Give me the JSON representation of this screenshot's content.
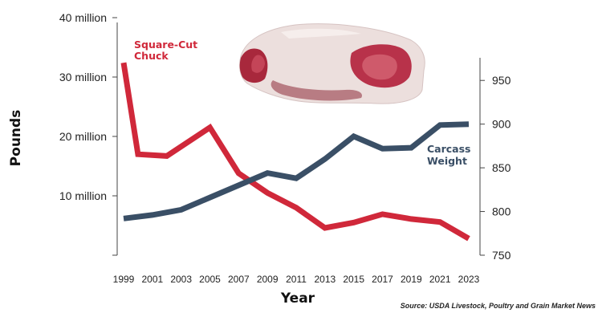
{
  "chart_data": {
    "type": "line",
    "xlabel": "Year",
    "ylabel": "Pounds",
    "source": "Source: USDA Livestock, Poultry and Grain Market News",
    "x_ticks": [
      "1999",
      "2001",
      "2003",
      "2005",
      "2007",
      "2009",
      "2011",
      "2013",
      "2015",
      "2017",
      "2019",
      "2021",
      "2023"
    ],
    "y_left": {
      "ticks": [
        10000000,
        20000000,
        30000000,
        40000000
      ],
      "tick_labels": [
        "10 million",
        "20 million",
        "30 million",
        "40 million"
      ],
      "lim": [
        0,
        40000000
      ]
    },
    "y_right": {
      "ticks": [
        750,
        800,
        850,
        900,
        950
      ],
      "tick_labels": [
        "750",
        "800",
        "850",
        "900",
        "950"
      ],
      "lim": [
        750,
        980
      ]
    },
    "series": [
      {
        "name": "Square-Cut Chuck",
        "axis": "left",
        "color": "#d0283a",
        "x": [
          1999,
          2000,
          2002,
          2005,
          2007,
          2009,
          2011,
          2013,
          2015,
          2017,
          2019,
          2021,
          2023
        ],
        "values": [
          32400000,
          17000000,
          16700000,
          21500000,
          13800000,
          10500000,
          8000000,
          4600000,
          5500000,
          6900000,
          6100000,
          5600000,
          2800000
        ]
      },
      {
        "name": "Carcass Weight",
        "axis": "right",
        "color": "#3a4f66",
        "x": [
          1999,
          2001,
          2003,
          2005,
          2007,
          2009,
          2011,
          2013,
          2015,
          2017,
          2019,
          2021,
          2023
        ],
        "values": [
          792,
          796,
          802,
          816,
          830,
          844,
          838,
          860,
          886,
          872,
          873,
          899,
          900
        ]
      }
    ]
  }
}
